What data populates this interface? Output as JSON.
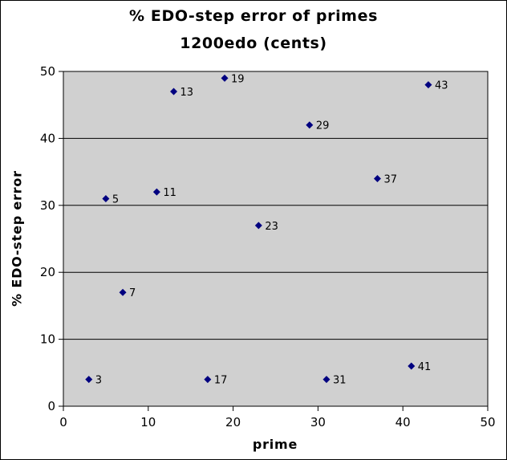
{
  "chart_data": {
    "type": "scatter",
    "title": "% EDO-step error of primes",
    "subtitle": "1200edo (cents)",
    "xlabel": "prime",
    "ylabel": "% EDO-step error",
    "xlim": [
      0,
      50
    ],
    "ylim": [
      0,
      50
    ],
    "x_ticks": [
      0,
      10,
      20,
      30,
      40,
      50
    ],
    "y_ticks": [
      0,
      10,
      20,
      30,
      40,
      50
    ],
    "grid": "horizontal",
    "legend": "none",
    "marker": "diamond",
    "colors": {
      "plot_background": "#d0d0d0",
      "marker": "#000080",
      "gridline": "#000000"
    },
    "points": [
      {
        "x": 3,
        "y": 4,
        "label": "3"
      },
      {
        "x": 5,
        "y": 31,
        "label": "5"
      },
      {
        "x": 7,
        "y": 17,
        "label": "7"
      },
      {
        "x": 11,
        "y": 32,
        "label": "11"
      },
      {
        "x": 13,
        "y": 47,
        "label": "13"
      },
      {
        "x": 17,
        "y": 4,
        "label": "17"
      },
      {
        "x": 19,
        "y": 49,
        "label": "19"
      },
      {
        "x": 23,
        "y": 27,
        "label": "23"
      },
      {
        "x": 29,
        "y": 42,
        "label": "29"
      },
      {
        "x": 31,
        "y": 4,
        "label": "31"
      },
      {
        "x": 37,
        "y": 34,
        "label": "37"
      },
      {
        "x": 41,
        "y": 6,
        "label": "41"
      },
      {
        "x": 43,
        "y": 48,
        "label": "43"
      }
    ]
  }
}
